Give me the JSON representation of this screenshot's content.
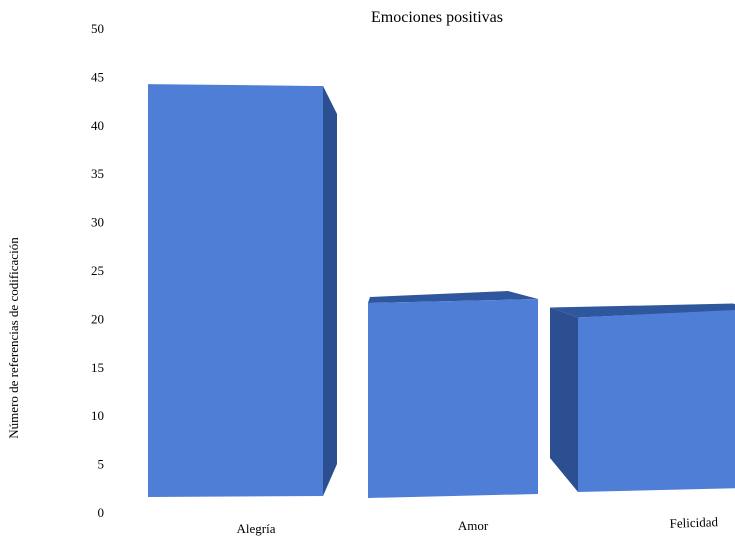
{
  "chart_data": {
    "type": "bar",
    "title": "Emociones positivas",
    "xlabel": "",
    "ylabel": "Número de referencias de codificación",
    "categories": [
      "Alegría",
      "Amor",
      "Felicidad"
    ],
    "values": [
      44,
      22,
      20.5
    ],
    "ylim": [
      0,
      50
    ],
    "yticks": [
      0,
      5,
      10,
      15,
      20,
      25,
      30,
      35,
      40,
      45,
      50
    ],
    "grid": false,
    "legend": "none",
    "colors": {
      "front": "#4f7ed6",
      "side": "#2b4f90",
      "top": "#2f579e"
    }
  }
}
